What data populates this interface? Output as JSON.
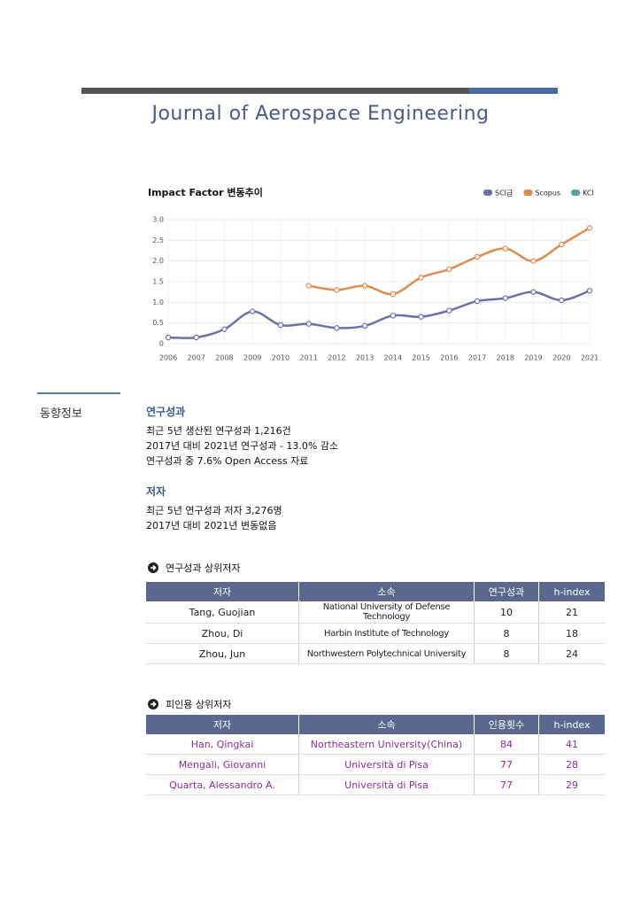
{
  "header": {
    "title": "Journal of Aerospace Engineering"
  },
  "chart_data": {
    "type": "line",
    "title": "Impact Factor 변동추이",
    "x": [
      2006,
      2007,
      2008,
      2009,
      2010,
      2011,
      2012,
      2013,
      2014,
      2015,
      2016,
      2017,
      2018,
      2019,
      2020,
      2021
    ],
    "xlim": [
      2006,
      2021
    ],
    "xticks": [
      2006,
      2007,
      2008,
      2009,
      2010,
      2011,
      2012,
      2013,
      2014,
      2015,
      2016,
      2017,
      2018,
      2019,
      2020,
      2021
    ],
    "ylim": [
      0,
      3
    ],
    "yticks": [
      0,
      0.5,
      {
        "value": 1,
        "label": "1.0"
      },
      1.5,
      {
        "value": 2,
        "label": "2.0"
      },
      2.5,
      {
        "value": 3,
        "label": "3.0"
      }
    ],
    "grid": true,
    "legend": "top-right",
    "series": [
      {
        "name": "SCI급",
        "color": "#6b70a8",
        "values": [
          0.15,
          0.15,
          0.35,
          0.78,
          0.45,
          0.48,
          0.38,
          0.43,
          0.68,
          0.65,
          0.8,
          1.03,
          1.1,
          1.25,
          1.05,
          1.28
        ]
      },
      {
        "name": "Scopus",
        "color": "#e08a4e",
        "values": [
          null,
          null,
          null,
          null,
          null,
          1.4,
          1.3,
          1.4,
          1.2,
          1.6,
          1.8,
          2.1,
          2.3,
          2.0,
          2.4,
          2.8
        ]
      },
      {
        "name": "KCI",
        "color": "#5aa0a8",
        "values": [
          null,
          null,
          null,
          null,
          null,
          null,
          null,
          null,
          null,
          null,
          null,
          null,
          null,
          null,
          null,
          null
        ]
      }
    ]
  },
  "section": {
    "label": "동향정보"
  },
  "blocks": [
    {
      "heading": "연구성과",
      "lines": [
        "최근 5년 생산된 연구성과 1,216건",
        "2017년 대비 2021년 연구성과 - 13.0% 감소",
        "연구성과 중 7.6% Open Access 자료"
      ]
    },
    {
      "heading": "저자",
      "lines": [
        "최근 5년 연구성과 저자 3,276명",
        "2017년 대비 2021년 변동없음"
      ]
    }
  ],
  "tables": [
    {
      "title": "연구성과 상위저자",
      "columns": [
        "저자",
        "소속",
        "연구성과",
        "h-index"
      ],
      "rows": [
        [
          "Tang, Guojian",
          "National University of Defense Technology",
          10,
          21
        ],
        [
          "Zhou, Di",
          "Harbin Institute of Technology",
          8,
          18
        ],
        [
          "Zhou, Jun",
          "Northwestern Polytechnical University",
          8,
          24
        ]
      ]
    },
    {
      "title": "피인용 상위저자",
      "columns": [
        "저자",
        "소속",
        "인용횟수",
        "h-index"
      ],
      "rows": [
        [
          "Han, Qingkai",
          "Northeastern University(China)",
          84,
          41
        ],
        [
          "Mengali, Giovanni",
          "Università di Pisa",
          77,
          28
        ],
        [
          "Quarta, Alessandro A.",
          "Università di Pisa",
          77,
          29
        ]
      ]
    }
  ]
}
